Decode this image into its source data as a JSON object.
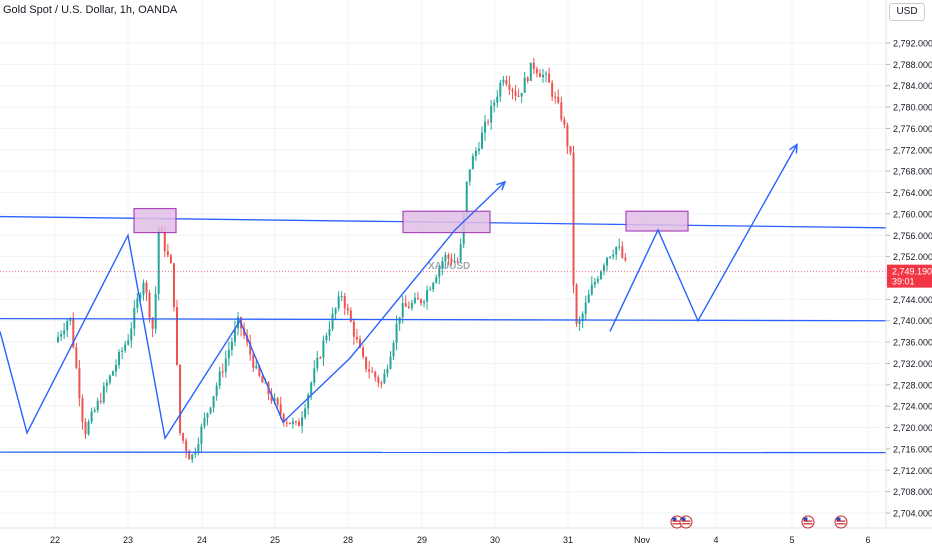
{
  "header": {
    "title": "Gold Spot / U.S. Dollar, 1h, OANDA",
    "currency": "USD"
  },
  "price_tag": {
    "price": "2,749.190",
    "countdown": "39:01"
  },
  "watermark": "XAUUSD",
  "colors": {
    "up": "#26a69a",
    "down": "#ef5350",
    "drawing": "#2962ff",
    "box_fill": "#e1bee7",
    "box_stroke": "#9c27b0",
    "price_tag": "#f23645"
  },
  "chart_data": {
    "type": "candlestick",
    "title": "Gold Spot / U.S. Dollar, 1h, OANDA",
    "ylim": [
      2702,
      2796
    ],
    "y_ticks": [
      "2,704.000",
      "2,708.000",
      "2,712.000",
      "2,716.000",
      "2,720.000",
      "2,724.000",
      "2,728.000",
      "2,732.000",
      "2,736.000",
      "2,740.000",
      "2,744.000",
      "2,748.000",
      "2,752.000",
      "2,756.000",
      "2,760.000",
      "2,764.000",
      "2,768.000",
      "2,772.000",
      "2,776.000",
      "2,780.000",
      "2,784.000",
      "2,788.000",
      "2,792.000"
    ],
    "x_ticks": [
      "22",
      "23",
      "24",
      "25",
      "28",
      "29",
      "30",
      "31",
      "Nov",
      "4",
      "5",
      "6"
    ],
    "last_price": 2749.19,
    "trajectory": [
      {
        "t": 0.0,
        "p": 2736
      },
      {
        "t": 0.2,
        "p": 2741
      },
      {
        "t": 0.4,
        "p": 2719
      },
      {
        "t": 1.0,
        "p": 2737
      },
      {
        "t": 1.2,
        "p": 2748
      },
      {
        "t": 1.35,
        "p": 2737
      },
      {
        "t": 1.4,
        "p": 2758
      },
      {
        "t": 1.6,
        "p": 2749
      },
      {
        "t": 1.7,
        "p": 2719
      },
      {
        "t": 1.85,
        "p": 2714
      },
      {
        "t": 2.3,
        "p": 2732
      },
      {
        "t": 2.5,
        "p": 2740
      },
      {
        "t": 2.75,
        "p": 2730
      },
      {
        "t": 3.1,
        "p": 2722
      },
      {
        "t": 3.3,
        "p": 2720
      },
      {
        "t": 3.7,
        "p": 2738
      },
      {
        "t": 3.9,
        "p": 2745
      },
      {
        "t": 4.2,
        "p": 2732
      },
      {
        "t": 4.45,
        "p": 2728
      },
      {
        "t": 4.7,
        "p": 2742
      },
      {
        "t": 5.0,
        "p": 2744
      },
      {
        "t": 5.3,
        "p": 2752
      },
      {
        "t": 5.5,
        "p": 2751
      },
      {
        "t": 5.62,
        "p": 2768
      },
      {
        "t": 5.9,
        "p": 2778
      },
      {
        "t": 6.1,
        "p": 2786
      },
      {
        "t": 6.3,
        "p": 2782
      },
      {
        "t": 6.5,
        "p": 2788
      },
      {
        "t": 6.7,
        "p": 2785
      },
      {
        "t": 6.9,
        "p": 2778
      },
      {
        "t": 7.02,
        "p": 2770
      },
      {
        "t": 7.05,
        "p": 2748
      },
      {
        "t": 7.1,
        "p": 2738
      },
      {
        "t": 7.3,
        "p": 2746
      },
      {
        "t": 7.5,
        "p": 2752
      },
      {
        "t": 7.65,
        "p": 2754
      },
      {
        "t": 7.8,
        "p": 2749.19
      }
    ],
    "x_axis": {
      "day0_px": 55,
      "px_per_day": 73.5
    }
  },
  "drawings": {
    "resistance_line": {
      "x1": 0,
      "y1": 2759.5,
      "x2": 886,
      "y2": 2757.4
    },
    "support_line": {
      "x1": 0,
      "y1": 2740.4,
      "x2": 886,
      "y2": 2740.0
    },
    "bottom_line": {
      "x1": 0,
      "y1": 2715.4,
      "x2": 886,
      "y2": 2715.3
    },
    "zigzag_left": [
      [
        0,
        2738
      ],
      [
        27,
        2719
      ],
      [
        128,
        2756
      ],
      [
        165,
        2718
      ],
      [
        240,
        2740
      ],
      [
        283,
        2721
      ],
      [
        350,
        2733
      ],
      [
        455,
        2757
      ],
      [
        505,
        2766
      ]
    ],
    "zigzag_right": [
      [
        610,
        2738
      ],
      [
        658,
        2757
      ],
      [
        698,
        2740
      ],
      [
        797,
        2773
      ]
    ],
    "boxes": [
      {
        "x": 134,
        "y_top": 2761,
        "w": 42,
        "y_bot": 2756.5
      },
      {
        "x": 403,
        "y_top": 2760.5,
        "w": 87,
        "y_bot": 2756.5
      },
      {
        "x": 626,
        "y_top": 2760.5,
        "w": 62,
        "y_bot": 2756.8
      }
    ]
  }
}
